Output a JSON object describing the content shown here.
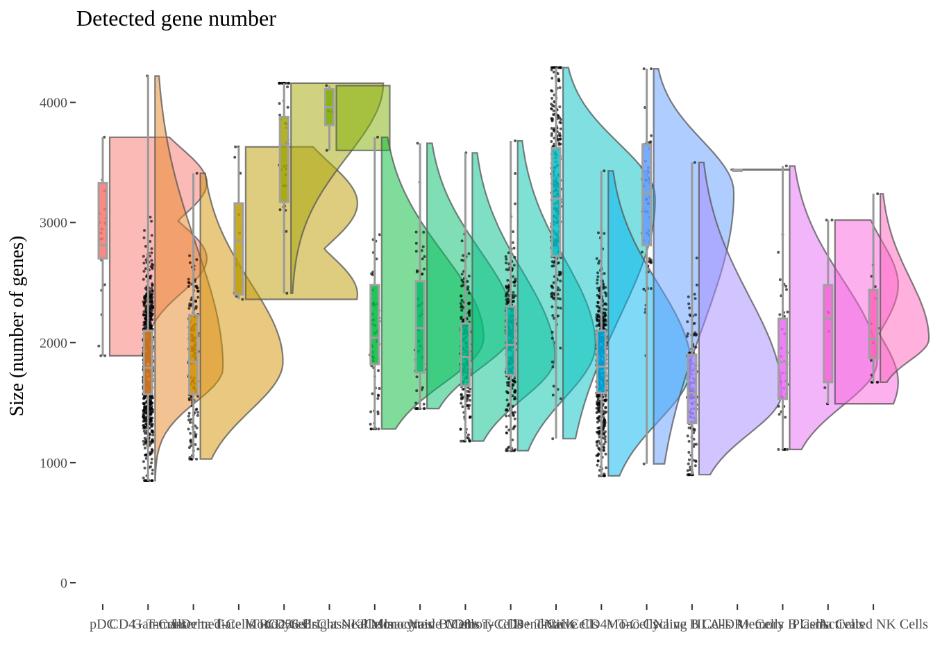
{
  "chart_data": {
    "type": "raincloud",
    "title": "Detected gene number",
    "xlabel": "",
    "ylabel": "Size (number of genes)",
    "ylim": [
      -200,
      4400
    ],
    "yticks": [
      0,
      1000,
      2000,
      3000,
      4000
    ],
    "series": [
      {
        "name": "pDC",
        "color": "#F8766D",
        "min": 1890,
        "q1": 2700,
        "median": 2810,
        "q3": 3330,
        "max": 3710,
        "n": 20,
        "peak": 2000,
        "mode": "bimodal"
      },
      {
        "name": "CD4+ T-Cells",
        "color": "#E88526",
        "min": 850,
        "q1": 1570,
        "median": 1790,
        "q3": 2100,
        "max": 4220,
        "n": 800,
        "peak": 1400,
        "mode": "right"
      },
      {
        "name": "Gamma-Delta T-Cells",
        "color": "#D39200",
        "min": 1030,
        "q1": 1570,
        "median": 1840,
        "q3": 2230,
        "max": 3410,
        "n": 160,
        "peak": 1700,
        "mode": "normal"
      },
      {
        "name": "Intermediate Monocytes",
        "color": "#BE9C00",
        "min": 2360,
        "q1": 2400,
        "median": 2850,
        "q3": 3160,
        "max": 3630,
        "n": 12,
        "peak": 2300,
        "mode": "bimodal"
      },
      {
        "name": "TRG2 Cells",
        "color": "#A3A500",
        "min": 2410,
        "q1": 3170,
        "median": 3650,
        "q3": 3880,
        "max": 4160,
        "n": 40,
        "peak": 1900,
        "mode": "left"
      },
      {
        "name": "CD56 Bright NK Cells",
        "color": "#7CAE00",
        "min": 3600,
        "q1": 3810,
        "median": 3960,
        "q3": 4110,
        "max": 4140,
        "n": 4,
        "peak": 1100,
        "mode": "flat"
      },
      {
        "name": "Classical Monocytes",
        "color": "#00BA38",
        "min": 1280,
        "q1": 1820,
        "median": 2040,
        "q3": 2480,
        "max": 3710,
        "n": 60,
        "peak": 2100,
        "mode": "normal"
      },
      {
        "name": "Plasmacytoid B Cells",
        "color": "#00BE67",
        "min": 1450,
        "q1": 1750,
        "median": 2120,
        "q3": 2510,
        "max": 3660,
        "n": 50,
        "peak": 1800,
        "mode": "normal"
      },
      {
        "name": "Naive CD8+ T-Cells",
        "color": "#00C08B",
        "min": 1180,
        "q1": 1640,
        "median": 1880,
        "q3": 2160,
        "max": 3580,
        "n": 200,
        "peak": 1700,
        "mode": "normal"
      },
      {
        "name": "Memory CD8+ T-Cells",
        "color": "#00C1AA",
        "min": 1100,
        "q1": 1730,
        "median": 1980,
        "q3": 2300,
        "max": 3680,
        "n": 300,
        "peak": 1600,
        "mode": "normal"
      },
      {
        "name": "Dendritic Cells",
        "color": "#00BFC4",
        "min": 1200,
        "q1": 2720,
        "median": 3200,
        "q3": 3620,
        "max": 4290,
        "n": 300,
        "peak": 1900,
        "mode": "normal"
      },
      {
        "name": "Naive CD4+ T-Cells",
        "color": "#00B4F0",
        "min": 890,
        "q1": 1580,
        "median": 1800,
        "q3": 2100,
        "max": 3430,
        "n": 500,
        "peak": 1700,
        "mode": "normal"
      },
      {
        "name": "Mono Cycling",
        "color": "#619CFF",
        "min": 990,
        "q1": 2810,
        "median": 3250,
        "q3": 3650,
        "max": 4280,
        "n": 60,
        "peak": 1650,
        "mode": "normal"
      },
      {
        "name": "Naive B Cells",
        "color": "#A58AFF",
        "min": 900,
        "q1": 1330,
        "median": 1580,
        "q3": 1900,
        "max": 3500,
        "n": 150,
        "peak": 1700,
        "mode": "normal"
      },
      {
        "name": "HLA-DR+ Cells",
        "color": "#C77CFF",
        "min": 3440,
        "q1": 3440,
        "median": 3440,
        "q3": 3440,
        "max": 3440,
        "n": 1,
        "peak": 0,
        "mode": "flat"
      },
      {
        "name": "Memory B Cells",
        "color": "#E76BF3",
        "min": 1110,
        "q1": 1530,
        "median": 1840,
        "q3": 2200,
        "max": 3470,
        "n": 40,
        "peak": 1800,
        "mode": "normal"
      },
      {
        "name": "Plasma Cells",
        "color": "#FA62DB",
        "min": 1490,
        "q1": 1670,
        "median": 2200,
        "q3": 2480,
        "max": 3020,
        "n": 8,
        "peak": 1300,
        "mode": "bimodal"
      },
      {
        "name": "Activated NK Cells",
        "color": "#FF62BC",
        "min": 1670,
        "q1": 1870,
        "median": 2030,
        "q3": 2440,
        "max": 3240,
        "n": 15,
        "peak": 1000,
        "mode": "normal"
      }
    ]
  }
}
